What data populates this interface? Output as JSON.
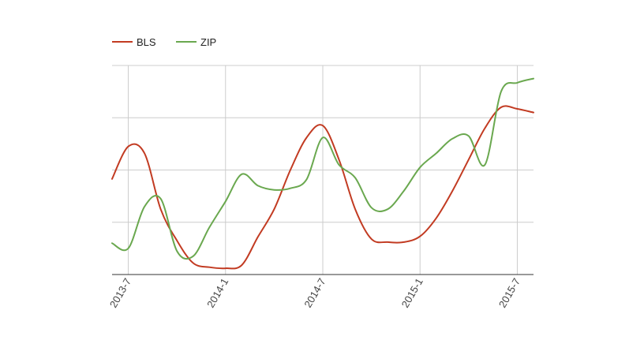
{
  "chart_data": {
    "type": "line",
    "x_ticks": [
      "2013-7",
      "2014-1",
      "2014-7",
      "2015-1",
      "2015-7"
    ],
    "x_range": [
      "2013-6",
      "2015-8"
    ],
    "grid": true,
    "legend_position": "top-left",
    "series": [
      {
        "name": "BLS",
        "color": "#c23b22",
        "x": [
          "2013-6",
          "2013-7",
          "2013-8",
          "2013-9",
          "2013-10",
          "2013-11",
          "2013-12",
          "2014-1",
          "2014-2",
          "2014-3",
          "2014-4",
          "2014-5",
          "2014-6",
          "2014-7",
          "2014-8",
          "2014-9",
          "2014-10",
          "2014-11",
          "2014-12",
          "2015-1",
          "2015-2",
          "2015-3",
          "2015-4",
          "2015-5",
          "2015-6",
          "2015-7",
          "2015-8"
        ],
        "values": [
          1.83,
          2.45,
          2.32,
          1.25,
          0.65,
          0.22,
          0.14,
          0.12,
          0.18,
          0.72,
          1.25,
          2.0,
          2.62,
          2.85,
          2.2,
          1.25,
          0.68,
          0.62,
          0.62,
          0.73,
          1.08,
          1.6,
          2.2,
          2.8,
          3.2,
          3.17,
          3.1
        ]
      },
      {
        "name": "ZIP",
        "color": "#6aa84f",
        "x": [
          "2013-6",
          "2013-7",
          "2013-8",
          "2013-9",
          "2013-10",
          "2013-11",
          "2013-12",
          "2014-1",
          "2014-2",
          "2014-3",
          "2014-4",
          "2014-5",
          "2014-6",
          "2014-7",
          "2014-8",
          "2014-9",
          "2014-10",
          "2014-11",
          "2014-12",
          "2015-1",
          "2015-2",
          "2015-3",
          "2015-4",
          "2015-5",
          "2015-6",
          "2015-7",
          "2015-8"
        ],
        "values": [
          0.6,
          0.5,
          1.3,
          1.45,
          0.45,
          0.35,
          0.9,
          1.4,
          1.92,
          1.7,
          1.62,
          1.65,
          1.82,
          2.62,
          2.1,
          1.85,
          1.28,
          1.25,
          1.6,
          2.05,
          2.32,
          2.6,
          2.65,
          2.1,
          3.5,
          3.67,
          3.75
        ]
      }
    ]
  }
}
